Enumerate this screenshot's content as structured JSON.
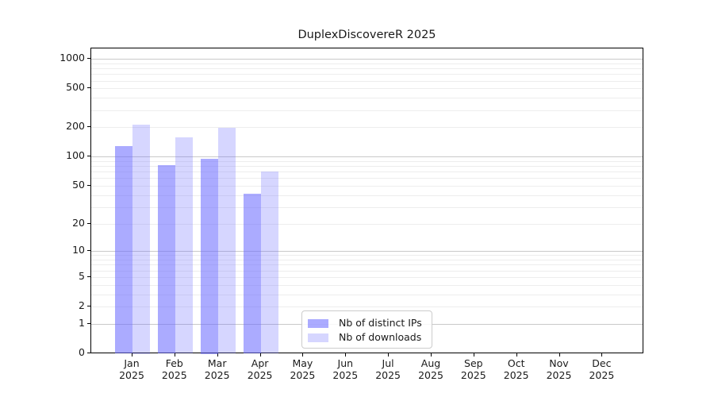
{
  "figure": {
    "background": "#ffffff"
  },
  "chart_data": {
    "type": "bar",
    "title": "DuplexDiscovereR 2025",
    "xlabel": "",
    "ylabel": "",
    "yscale": "log1p",
    "ylim": [
      0,
      1280
    ],
    "grid": "horizontal, minor log gridlines on",
    "legend_position": "inside bottom-center",
    "yticks": [
      0,
      1,
      2,
      5,
      10,
      20,
      50,
      100,
      200,
      500,
      1000
    ],
    "ytick_major_gridlines": [
      1,
      10,
      100,
      1000
    ],
    "categories": [
      {
        "month": "Jan",
        "year": "2025"
      },
      {
        "month": "Feb",
        "year": "2025"
      },
      {
        "month": "Mar",
        "year": "2025"
      },
      {
        "month": "Apr",
        "year": "2025"
      },
      {
        "month": "May",
        "year": "2025"
      },
      {
        "month": "Jun",
        "year": "2025"
      },
      {
        "month": "Jul",
        "year": "2025"
      },
      {
        "month": "Aug",
        "year": "2025"
      },
      {
        "month": "Sep",
        "year": "2025"
      },
      {
        "month": "Oct",
        "year": "2025"
      },
      {
        "month": "Nov",
        "year": "2025"
      },
      {
        "month": "Dec",
        "year": "2025"
      }
    ],
    "series": [
      {
        "name": "Nb of distinct IPs",
        "values": [
          128,
          82,
          95,
          41,
          0,
          0,
          0,
          0,
          0,
          0,
          0,
          0
        ],
        "base_color": "#6666ff",
        "alpha": 0.55,
        "fill": "rgba(102,102,255,0.55)"
      },
      {
        "name": "Nb of downloads",
        "values": [
          213,
          159,
          196,
          70,
          0,
          0,
          0,
          0,
          0,
          0,
          0,
          0
        ],
        "base_color": "#6666ff",
        "alpha": 0.27,
        "fill": "rgba(102,102,255,0.27)"
      }
    ],
    "colors": {
      "axis_spine": "#000000",
      "text": "#1a1a1a",
      "grid_major": "#c9c9c9",
      "grid_minor": "#ededed",
      "legend_border": "#cccccc"
    }
  }
}
